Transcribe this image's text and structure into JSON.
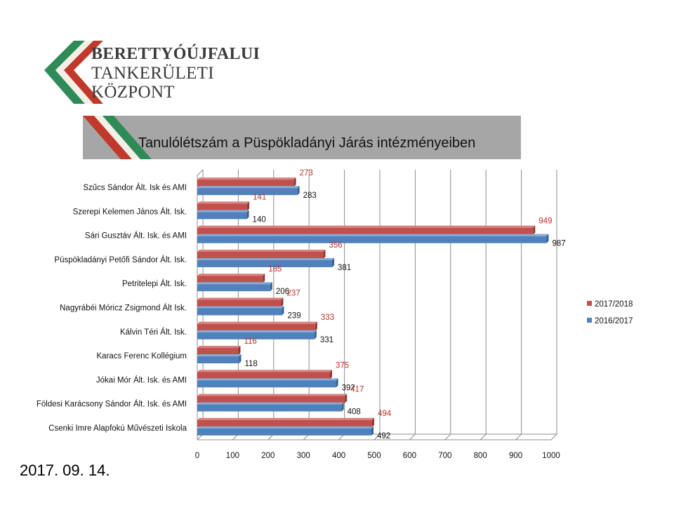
{
  "logo": {
    "lines": [
      "BERETTYÓÚJFALUI",
      "TANKERÜLETI",
      "KÖZPONT"
    ]
  },
  "date": "2017. 09. 14.",
  "colors": {
    "series_2017": "#c0504d",
    "series_2016": "#4f81bd",
    "label_2017": "#c0302a",
    "label_2016": "#111111",
    "title_bar": "#a6a6a6",
    "logo_green": "#2e8b57",
    "logo_red": "#c0392b"
  },
  "chart_data": {
    "type": "bar",
    "orientation": "horizontal",
    "title": "Tanulólétszám a Püspökladányi Járás intézményeiben",
    "categories": [
      "Szűcs Sándor Ált. Isk és AMI",
      "Szerepi Kelemen János Ált. Isk.",
      "Sári Gusztáv Ált. Isk. és AMI",
      "Püspökladányi Petőfi Sándor Ált. Isk.",
      "Petritelepi Ált. Isk.",
      "Nagyrábéi Móricz Zsigmond Ált Isk.",
      "Kálvin Téri Ált. Isk.",
      "Karacs Ferenc Kollégium",
      "Jókai Mór Ált. Isk. és AMI",
      "Földesi Karácsony Sándor Ált. Isk. és AMI",
      "Csenki Imre Alapfokú Művészeti Iskola"
    ],
    "series": [
      {
        "name": "2017/2018",
        "values": [
          273,
          141,
          949,
          356,
          185,
          237,
          333,
          116,
          375,
          417,
          494
        ]
      },
      {
        "name": "2016/2017",
        "values": [
          283,
          140,
          987,
          381,
          206,
          239,
          331,
          118,
          392,
          408,
          492
        ]
      }
    ],
    "xlim": [
      0,
      1000
    ],
    "xticks": [
      "0",
      "100",
      "200",
      "300",
      "400",
      "500",
      "600",
      "700",
      "800",
      "900",
      "1000"
    ],
    "legend": "right",
    "grid": true
  }
}
